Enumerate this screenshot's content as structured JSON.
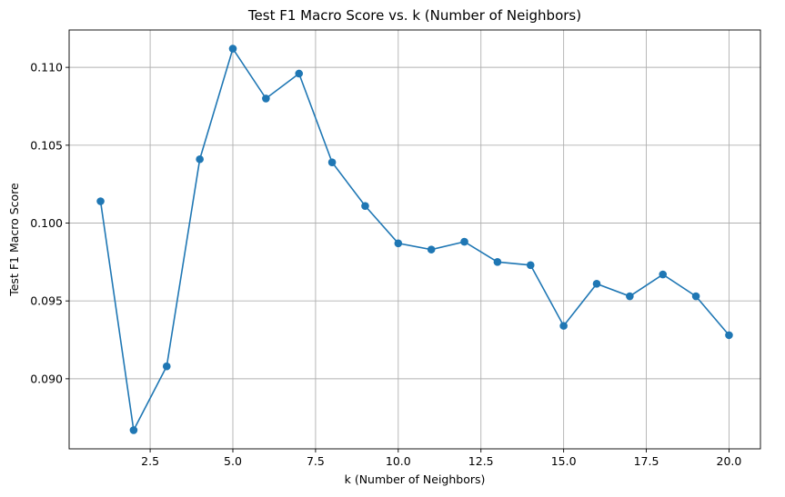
{
  "chart_data": {
    "type": "line",
    "title": "Test F1 Macro Score vs. k (Number of Neighbors)",
    "xlabel": "k (Number of Neighbors)",
    "ylabel": "Test F1 Macro Score",
    "xlim": [
      0.05,
      20.95
    ],
    "ylim": [
      0.0855,
      0.1124
    ],
    "xticks": [
      2.5,
      5.0,
      7.5,
      10.0,
      12.5,
      15.0,
      17.5,
      20.0
    ],
    "xtick_labels": [
      "2.5",
      "5.0",
      "7.5",
      "10.0",
      "12.5",
      "15.0",
      "17.5",
      "20.0"
    ],
    "yticks": [
      0.09,
      0.095,
      0.1,
      0.105,
      0.11
    ],
    "ytick_labels": [
      "0.090",
      "0.095",
      "0.100",
      "0.105",
      "0.110"
    ],
    "grid": true,
    "color": "#1f77b4",
    "marker": "circle",
    "series": [
      {
        "x": [
          1,
          2,
          3,
          4,
          5,
          6,
          7,
          8,
          9,
          10,
          11,
          12,
          13,
          14,
          15,
          16,
          17,
          18,
          19,
          20
        ],
        "values": [
          0.1014,
          0.0867,
          0.0908,
          0.1041,
          0.1112,
          0.108,
          0.1096,
          0.1039,
          0.1011,
          0.0987,
          0.0983,
          0.0988,
          0.0975,
          0.0973,
          0.0934,
          0.0961,
          0.0953,
          0.0967,
          0.0953,
          0.0928
        ]
      }
    ]
  }
}
